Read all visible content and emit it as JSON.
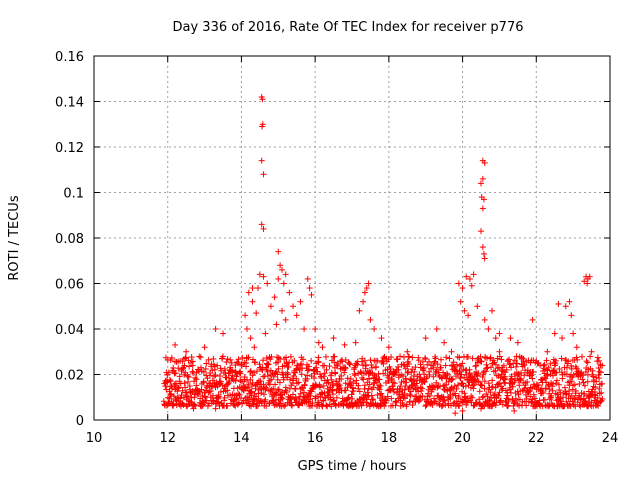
{
  "chart_data": {
    "type": "scatter",
    "title": "Day 336 of 2016, Rate Of TEC Index for receiver p776",
    "xlabel": "GPS time / hours",
    "ylabel": "ROTI / TECUs",
    "xlim": [
      10,
      24
    ],
    "ylim": [
      0,
      0.16
    ],
    "xticks": [
      "10",
      "12",
      "14",
      "16",
      "18",
      "20",
      "22",
      "24"
    ],
    "yticks": [
      "0",
      "0.02",
      "0.04",
      "0.06",
      "0.08",
      "0.1",
      "0.12",
      "0.14",
      "0.16"
    ],
    "grid": true,
    "marker": "+",
    "color": "#ff0000",
    "baseline": {
      "x_start": 11.9,
      "x_end": 23.8,
      "typical_min": 0.006,
      "typical_max": 0.028
    },
    "series": [
      {
        "name": "ROTI",
        "points": [
          [
            14.55,
            0.142
          ],
          [
            14.57,
            0.141
          ],
          [
            14.58,
            0.13
          ],
          [
            14.56,
            0.129
          ],
          [
            14.55,
            0.114
          ],
          [
            14.6,
            0.108
          ],
          [
            14.55,
            0.086
          ],
          [
            14.6,
            0.084
          ],
          [
            20.55,
            0.114
          ],
          [
            20.6,
            0.113
          ],
          [
            20.55,
            0.106
          ],
          [
            20.5,
            0.104
          ],
          [
            20.52,
            0.098
          ],
          [
            20.58,
            0.097
          ],
          [
            20.55,
            0.093
          ],
          [
            20.5,
            0.083
          ],
          [
            20.55,
            0.076
          ],
          [
            20.58,
            0.073
          ],
          [
            20.6,
            0.071
          ],
          [
            15.0,
            0.074
          ],
          [
            15.05,
            0.068
          ],
          [
            15.1,
            0.066
          ],
          [
            15.0,
            0.062
          ],
          [
            15.15,
            0.06
          ],
          [
            15.2,
            0.064
          ],
          [
            14.5,
            0.064
          ],
          [
            14.6,
            0.063
          ],
          [
            14.3,
            0.058
          ],
          [
            14.2,
            0.056
          ],
          [
            14.45,
            0.058
          ],
          [
            14.7,
            0.06
          ],
          [
            14.1,
            0.046
          ],
          [
            14.15,
            0.04
          ],
          [
            14.3,
            0.052
          ],
          [
            14.4,
            0.047
          ],
          [
            14.8,
            0.05
          ],
          [
            14.9,
            0.054
          ],
          [
            15.3,
            0.056
          ],
          [
            15.4,
            0.05
          ],
          [
            15.5,
            0.046
          ],
          [
            15.6,
            0.052
          ],
          [
            15.8,
            0.062
          ],
          [
            15.85,
            0.058
          ],
          [
            15.9,
            0.055
          ],
          [
            16.0,
            0.04
          ],
          [
            15.2,
            0.044
          ],
          [
            15.1,
            0.048
          ],
          [
            14.95,
            0.042
          ],
          [
            14.25,
            0.036
          ],
          [
            14.35,
            0.032
          ],
          [
            14.65,
            0.038
          ],
          [
            15.7,
            0.04
          ],
          [
            16.1,
            0.034
          ],
          [
            16.2,
            0.032
          ],
          [
            13.5,
            0.038
          ],
          [
            13.3,
            0.04
          ],
          [
            13.0,
            0.032
          ],
          [
            12.5,
            0.03
          ],
          [
            12.2,
            0.033
          ],
          [
            17.2,
            0.048
          ],
          [
            17.3,
            0.052
          ],
          [
            17.4,
            0.058
          ],
          [
            17.45,
            0.06
          ],
          [
            17.35,
            0.056
          ],
          [
            17.5,
            0.044
          ],
          [
            17.1,
            0.034
          ],
          [
            17.6,
            0.04
          ],
          [
            17.8,
            0.036
          ],
          [
            18.0,
            0.032
          ],
          [
            16.8,
            0.033
          ],
          [
            16.5,
            0.036
          ],
          [
            19.0,
            0.036
          ],
          [
            19.3,
            0.04
          ],
          [
            19.5,
            0.034
          ],
          [
            19.9,
            0.06
          ],
          [
            20.0,
            0.058
          ],
          [
            20.1,
            0.063
          ],
          [
            20.2,
            0.062
          ],
          [
            20.25,
            0.059
          ],
          [
            20.3,
            0.064
          ],
          [
            19.95,
            0.052
          ],
          [
            20.05,
            0.048
          ],
          [
            20.15,
            0.046
          ],
          [
            20.4,
            0.05
          ],
          [
            20.6,
            0.044
          ],
          [
            20.7,
            0.04
          ],
          [
            20.8,
            0.048
          ],
          [
            21.0,
            0.038
          ],
          [
            20.9,
            0.036
          ],
          [
            21.3,
            0.036
          ],
          [
            21.5,
            0.034
          ],
          [
            21.9,
            0.044
          ],
          [
            21.0,
            0.03
          ],
          [
            18.5,
            0.03
          ],
          [
            19.7,
            0.03
          ],
          [
            22.5,
            0.038
          ],
          [
            22.6,
            0.051
          ],
          [
            22.8,
            0.05
          ],
          [
            22.9,
            0.052
          ],
          [
            22.95,
            0.046
          ],
          [
            23.0,
            0.038
          ],
          [
            22.7,
            0.036
          ],
          [
            23.1,
            0.032
          ],
          [
            23.3,
            0.061
          ],
          [
            23.35,
            0.063
          ],
          [
            23.4,
            0.062
          ],
          [
            23.38,
            0.06
          ],
          [
            23.45,
            0.063
          ],
          [
            23.5,
            0.03
          ],
          [
            23.7,
            0.026
          ],
          [
            22.3,
            0.03
          ],
          [
            22.0,
            0.026
          ],
          [
            19.8,
            0.003
          ],
          [
            20.0,
            0.004
          ],
          [
            20.5,
            0.005
          ],
          [
            12.7,
            0.005
          ],
          [
            13.3,
            0.005
          ],
          [
            21.4,
            0.004
          ]
        ]
      }
    ]
  }
}
